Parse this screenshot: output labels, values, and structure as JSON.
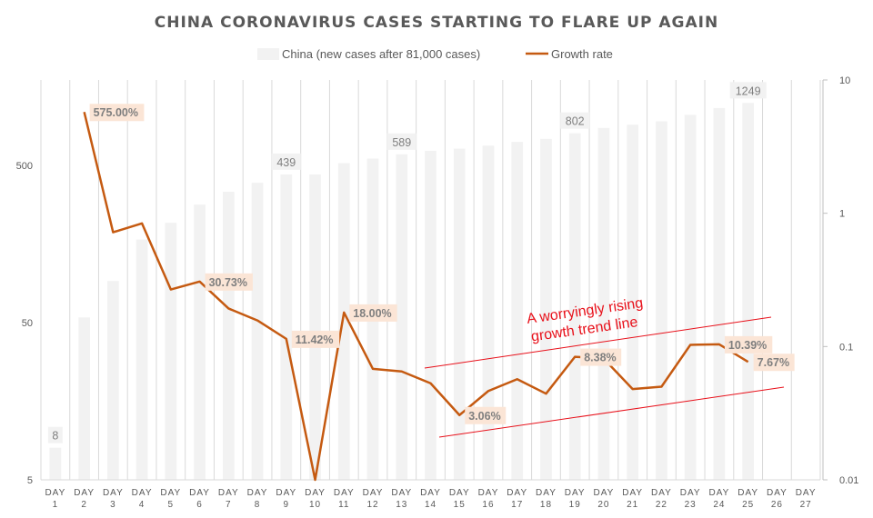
{
  "chart_data": {
    "type": "bar+line",
    "title": "CHINA CORONAVIRUS CASES STARTING TO  FLARE UP AGAIN",
    "legend": {
      "placement": "top-center",
      "entries": [
        "China (new cases after 81,000 cases)",
        "Growth rate"
      ]
    },
    "categories": [
      "DAY 1",
      "DAY 2",
      "DAY 3",
      "DAY 4",
      "DAY 5",
      "DAY 6",
      "DAY 7",
      "DAY 8",
      "DAY 9",
      "DAY 10",
      "DAY 11",
      "DAY 12",
      "DAY 13",
      "DAY 14",
      "DAY 15",
      "DAY 16",
      "DAY 17",
      "DAY 18",
      "DAY 19",
      "DAY 20",
      "DAY 21",
      "DAY 22",
      "DAY 23",
      "DAY 24",
      "DAY 25",
      "DAY 26",
      "DAY 27"
    ],
    "series": [
      {
        "name": "China (new cases after 81,000 cases)",
        "type": "bar",
        "axis": "left",
        "color": "#f2f2f2",
        "values": [
          8,
          54,
          92,
          169,
          216,
          282,
          340,
          388,
          439,
          439,
          518,
          553,
          589,
          620,
          639,
          669,
          707,
          738,
          802,
          867,
          909,
          955,
          1051,
          1160,
          1249,
          null,
          null
        ],
        "data_labels": {
          "0": "8",
          "8": "439",
          "12": "589",
          "18": "802",
          "24": "1249"
        }
      },
      {
        "name": "Growth rate",
        "type": "line",
        "axis": "right",
        "color": "#c55a11",
        "values": [
          null,
          5.75,
          0.72,
          0.84,
          0.268,
          0.3073,
          0.193,
          0.157,
          0.1142,
          0,
          0.18,
          0.068,
          0.065,
          0.053,
          0.0306,
          0.0464,
          0.0569,
          0.0443,
          0.0838,
          0.081,
          0.048,
          0.05,
          0.103,
          0.1039,
          0.0767,
          null,
          null
        ],
        "data_labels": {
          "1": "575.00%",
          "5": "30.73%",
          "8": "11.42%",
          "10": "18.00%",
          "14": "3.06%",
          "18": "8.38%",
          "23": "10.39%",
          "24": "7.67%"
        }
      }
    ],
    "left_axis": {
      "scale": "log",
      "range": [
        5,
        1750
      ],
      "ticks": [
        "5",
        "50",
        "500"
      ]
    },
    "right_axis": {
      "scale": "log",
      "range": [
        0.01,
        10
      ],
      "ticks": [
        "0.01",
        "0.1",
        "1",
        "10"
      ]
    },
    "grid": "vertical",
    "annotation": {
      "lines": [
        "A worryingly rising",
        "growth trend line"
      ],
      "color": "#e8101a"
    }
  }
}
